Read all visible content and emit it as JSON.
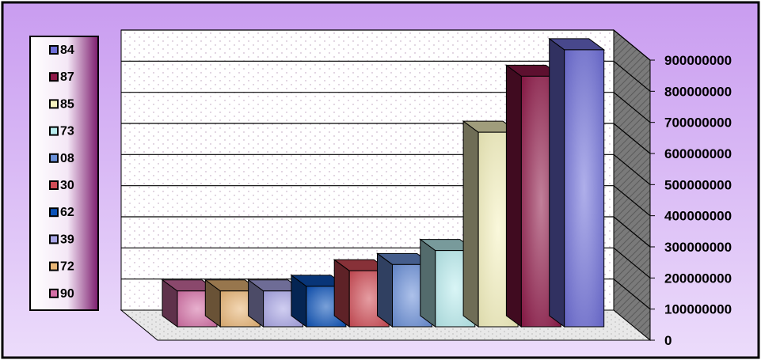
{
  "chart_data": {
    "type": "bar",
    "categories": [
      "90",
      "72",
      "39",
      "62",
      "30",
      "08",
      "73",
      "85",
      "87",
      "84"
    ],
    "values": [
      115000000,
      115000000,
      115000000,
      130000000,
      180000000,
      200000000,
      245000000,
      625000000,
      805000000,
      890000000
    ],
    "colors": [
      "#d46fa6",
      "#e9b677",
      "#a9a6e6",
      "#0c52b8",
      "#d04c56",
      "#6a8fd8",
      "#b9edef",
      "#f6f2bf",
      "#8f1848",
      "#6e6ed8"
    ],
    "yticks": [
      "0",
      "100000000",
      "200000000",
      "300000000",
      "400000000",
      "500000000",
      "600000000",
      "700000000",
      "800000000",
      "900000000"
    ],
    "ylim": [
      0,
      900000000
    ],
    "legend": {
      "position": "left",
      "entries": [
        {
          "label": "84",
          "color": "#6e6ed8"
        },
        {
          "label": "87",
          "color": "#8f1848"
        },
        {
          "label": "85",
          "color": "#f6f2bf"
        },
        {
          "label": "73",
          "color": "#b9edef"
        },
        {
          "label": "08",
          "color": "#6a8fd8"
        },
        {
          "label": "30",
          "color": "#d04c56"
        },
        {
          "label": "62",
          "color": "#0c52b8"
        },
        {
          "label": "39",
          "color": "#a9a6e6"
        },
        {
          "label": "72",
          "color": "#e9b677"
        },
        {
          "label": "90",
          "color": "#d46fa6"
        }
      ]
    },
    "grid": true,
    "three_d": true
  }
}
